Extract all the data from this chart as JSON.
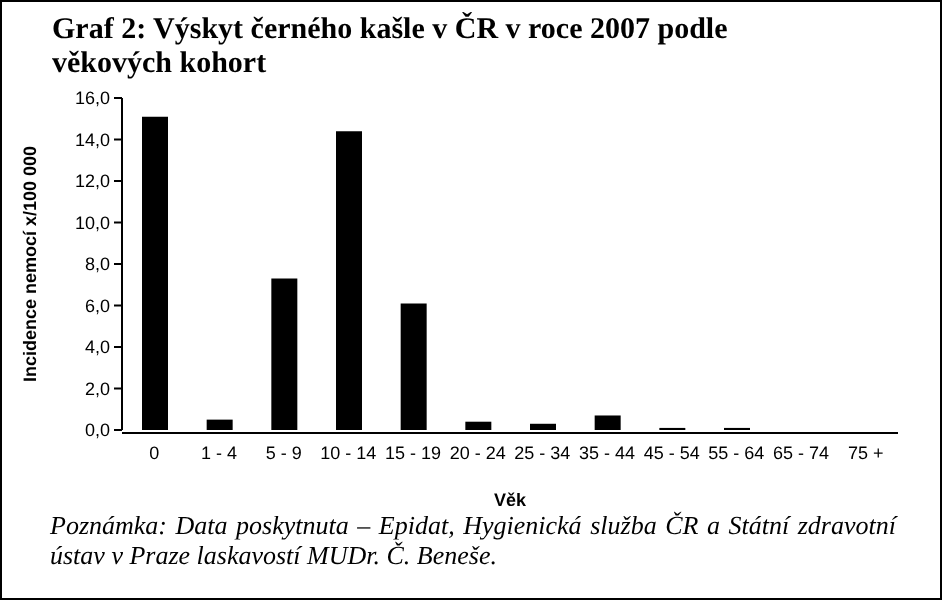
{
  "chart_data": {
    "type": "bar",
    "title": "Graf 2: Výskyt černého kašle v ČR v roce 2007 podle věkových kohort",
    "xlabel": "Věk",
    "ylabel": "Incidence nemocí x/100 000",
    "categories": [
      "0",
      "1 - 4",
      "5 - 9",
      "10 - 14",
      "15 - 19",
      "20 - 24",
      "25 - 34",
      "35 - 44",
      "45 - 54",
      "55 - 64",
      "65 - 74",
      "75 +"
    ],
    "values": [
      15.1,
      0.5,
      7.3,
      14.4,
      6.1,
      0.4,
      0.3,
      0.7,
      0.1,
      0.1,
      0,
      0
    ],
    "color": "#000000",
    "ylim": [
      0,
      16
    ],
    "yticks": [
      {
        "value": 0,
        "label": "0,0"
      },
      {
        "value": 2,
        "label": "2,0"
      },
      {
        "value": 4,
        "label": "4,0"
      },
      {
        "value": 6,
        "label": "6,0"
      },
      {
        "value": 8,
        "label": "8,0"
      },
      {
        "value": 10,
        "label": "10,0"
      },
      {
        "value": 12,
        "label": "12,0"
      },
      {
        "value": 14,
        "label": "14,0"
      },
      {
        "value": 16,
        "label": "16,0"
      }
    ],
    "annotations": [
      "Poznámka: Data poskytnuta – Epidat, Hygienická služba ČR a Státní zdravotní ústav v Praze laskavostí MUDr. Č. Beneše."
    ]
  }
}
